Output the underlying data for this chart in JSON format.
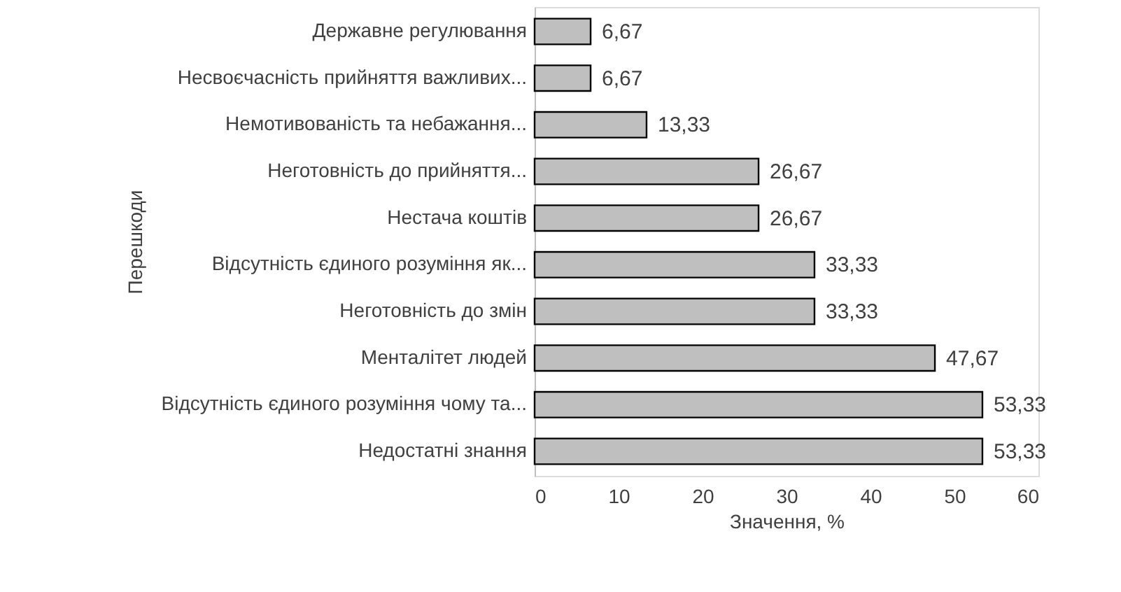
{
  "chart_data": {
    "type": "bar",
    "orientation": "horizontal",
    "xlabel": "Значення, %",
    "ylabel": "Перешкоди",
    "categories": [
      "Державне регулювання",
      "Несвоєчасність прийняття важливих...",
      "Немотивованість та небажання...",
      "Неготовність до прийняття...",
      "Нестача коштів",
      "Відсутність єдиного розуміння як...",
      "Неготовність до змін",
      "Менталітет людей",
      "Відсутність єдиного розуміння чому та...",
      "Недостатні знання"
    ],
    "values": [
      6.67,
      6.67,
      13.33,
      26.67,
      26.67,
      33.33,
      33.33,
      47.67,
      53.33,
      53.33
    ],
    "value_labels": [
      "6,67",
      "6,67",
      "13,33",
      "26,67",
      "26,67",
      "33,33",
      "33,33",
      "47,67",
      "53,33",
      "53,33"
    ],
    "color": "#bfbfbf",
    "xlim": [
      0,
      60
    ],
    "xticks": [
      0,
      10,
      20,
      30,
      40,
      50,
      60
    ],
    "grid": false
  }
}
